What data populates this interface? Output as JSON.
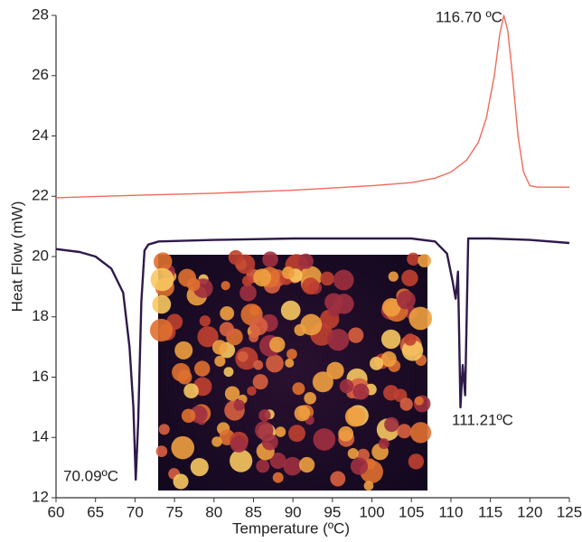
{
  "chart_data": {
    "type": "line",
    "x_label": "Temperature (ºC)",
    "y_label": "Heat Flow (mW)",
    "xlim": [
      60,
      125
    ],
    "xticks": [
      60,
      65,
      70,
      75,
      80,
      85,
      90,
      95,
      100,
      105,
      110,
      115,
      120,
      125
    ],
    "ylim": [
      12,
      28
    ],
    "yticks": [
      12,
      14,
      16,
      18,
      20,
      22,
      24,
      26,
      28
    ],
    "series": [
      {
        "color": "#f06a5a",
        "x": [
          60,
          70,
          80,
          90,
          100,
          105,
          108,
          110,
          112,
          113.5,
          114.5,
          115.5,
          116.2,
          116.7,
          117.2,
          117.8,
          118.5,
          119.2,
          120,
          121,
          125
        ],
        "values": [
          21.95,
          22.03,
          22.1,
          22.2,
          22.35,
          22.45,
          22.6,
          22.8,
          23.2,
          23.8,
          24.6,
          26.0,
          27.4,
          28.0,
          27.5,
          26.0,
          24.0,
          22.8,
          22.35,
          22.3,
          22.3
        ]
      },
      {
        "color": "#2e1a4a",
        "x": [
          60,
          63,
          65,
          67,
          68.5,
          69.3,
          69.8,
          70.09,
          70.4,
          70.8,
          71.2,
          71.7,
          73,
          80,
          90,
          100,
          105,
          108,
          109.5,
          110.2,
          110.6,
          110.9,
          111.21,
          111.5,
          111.8,
          112.2,
          115,
          120,
          125
        ],
        "values": [
          20.25,
          20.15,
          20.0,
          19.6,
          18.8,
          17.0,
          15.0,
          12.6,
          14.5,
          18.5,
          20.2,
          20.4,
          20.5,
          20.55,
          20.6,
          20.6,
          20.6,
          20.5,
          20.1,
          19.2,
          18.6,
          19.5,
          15.0,
          16.4,
          15.4,
          20.6,
          20.6,
          20.55,
          20.45
        ]
      }
    ],
    "annotations": [
      "116.70 ºC",
      "70.09ºC",
      "111.21ºC"
    ]
  }
}
